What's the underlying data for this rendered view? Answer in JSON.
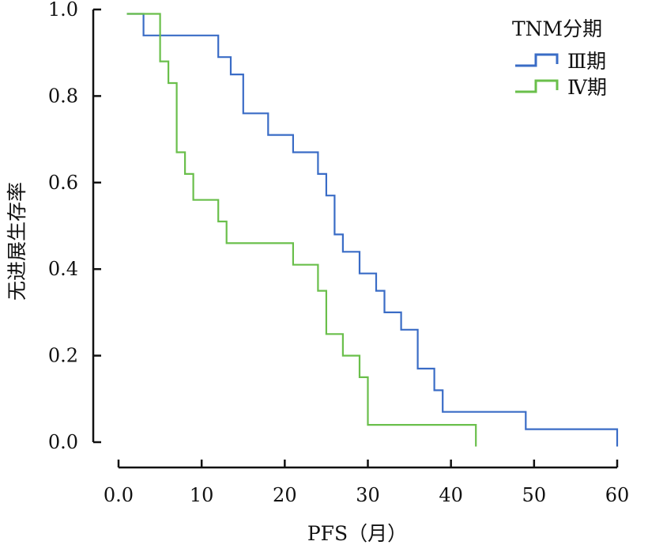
{
  "chart_data": {
    "type": "line",
    "subtype": "kaplan-meier-step",
    "xlabel": "PFS（月）",
    "ylabel": "无进展生存率",
    "xlim": [
      0,
      60
    ],
    "ylim": [
      0,
      1.0
    ],
    "xticks": [
      "0.0",
      "10",
      "20",
      "30",
      "40",
      "50",
      "60"
    ],
    "xtick_values": [
      0,
      10,
      20,
      30,
      40,
      50,
      60
    ],
    "yticks": [
      "0.0",
      "0.2",
      "0.4",
      "0.6",
      "0.8",
      "1.0"
    ],
    "ytick_values": [
      0,
      0.2,
      0.4,
      0.6,
      0.8,
      1.0
    ],
    "grid": false,
    "legend": {
      "title": "TNM分期",
      "position": "top-right"
    },
    "series": [
      {
        "name": "Ⅲ期",
        "color": "#3a6cc6",
        "points": [
          [
            1,
            0.99
          ],
          [
            3,
            0.99
          ],
          [
            3,
            0.94
          ],
          [
            12,
            0.94
          ],
          [
            12,
            0.89
          ],
          [
            13.5,
            0.89
          ],
          [
            13.5,
            0.85
          ],
          [
            15,
            0.85
          ],
          [
            15,
            0.76
          ],
          [
            18,
            0.76
          ],
          [
            18,
            0.71
          ],
          [
            21,
            0.71
          ],
          [
            21,
            0.67
          ],
          [
            24,
            0.67
          ],
          [
            24,
            0.62
          ],
          [
            25,
            0.62
          ],
          [
            25,
            0.57
          ],
          [
            26,
            0.57
          ],
          [
            26,
            0.48
          ],
          [
            27,
            0.48
          ],
          [
            27,
            0.44
          ],
          [
            29,
            0.44
          ],
          [
            29,
            0.39
          ],
          [
            31,
            0.39
          ],
          [
            31,
            0.35
          ],
          [
            32,
            0.35
          ],
          [
            32,
            0.3
          ],
          [
            34,
            0.3
          ],
          [
            34,
            0.26
          ],
          [
            36,
            0.26
          ],
          [
            36,
            0.17
          ],
          [
            38,
            0.17
          ],
          [
            38,
            0.12
          ],
          [
            39,
            0.12
          ],
          [
            39,
            0.07
          ],
          [
            49,
            0.07
          ],
          [
            49,
            0.03
          ],
          [
            60,
            0.03
          ],
          [
            60,
            -0.01
          ]
        ]
      },
      {
        "name": "Ⅳ期",
        "color": "#6abf4b",
        "points": [
          [
            1,
            0.99
          ],
          [
            5,
            0.99
          ],
          [
            5,
            0.88
          ],
          [
            6,
            0.88
          ],
          [
            6,
            0.83
          ],
          [
            7,
            0.83
          ],
          [
            7,
            0.67
          ],
          [
            8,
            0.67
          ],
          [
            8,
            0.62
          ],
          [
            9,
            0.62
          ],
          [
            9,
            0.56
          ],
          [
            12,
            0.56
          ],
          [
            12,
            0.51
          ],
          [
            13,
            0.51
          ],
          [
            13,
            0.46
          ],
          [
            21,
            0.46
          ],
          [
            21,
            0.41
          ],
          [
            24,
            0.41
          ],
          [
            24,
            0.35
          ],
          [
            25,
            0.35
          ],
          [
            25,
            0.25
          ],
          [
            27,
            0.25
          ],
          [
            27,
            0.2
          ],
          [
            29,
            0.2
          ],
          [
            29,
            0.15
          ],
          [
            30,
            0.15
          ],
          [
            30,
            0.04
          ],
          [
            43,
            0.04
          ],
          [
            43,
            -0.01
          ]
        ]
      }
    ]
  }
}
